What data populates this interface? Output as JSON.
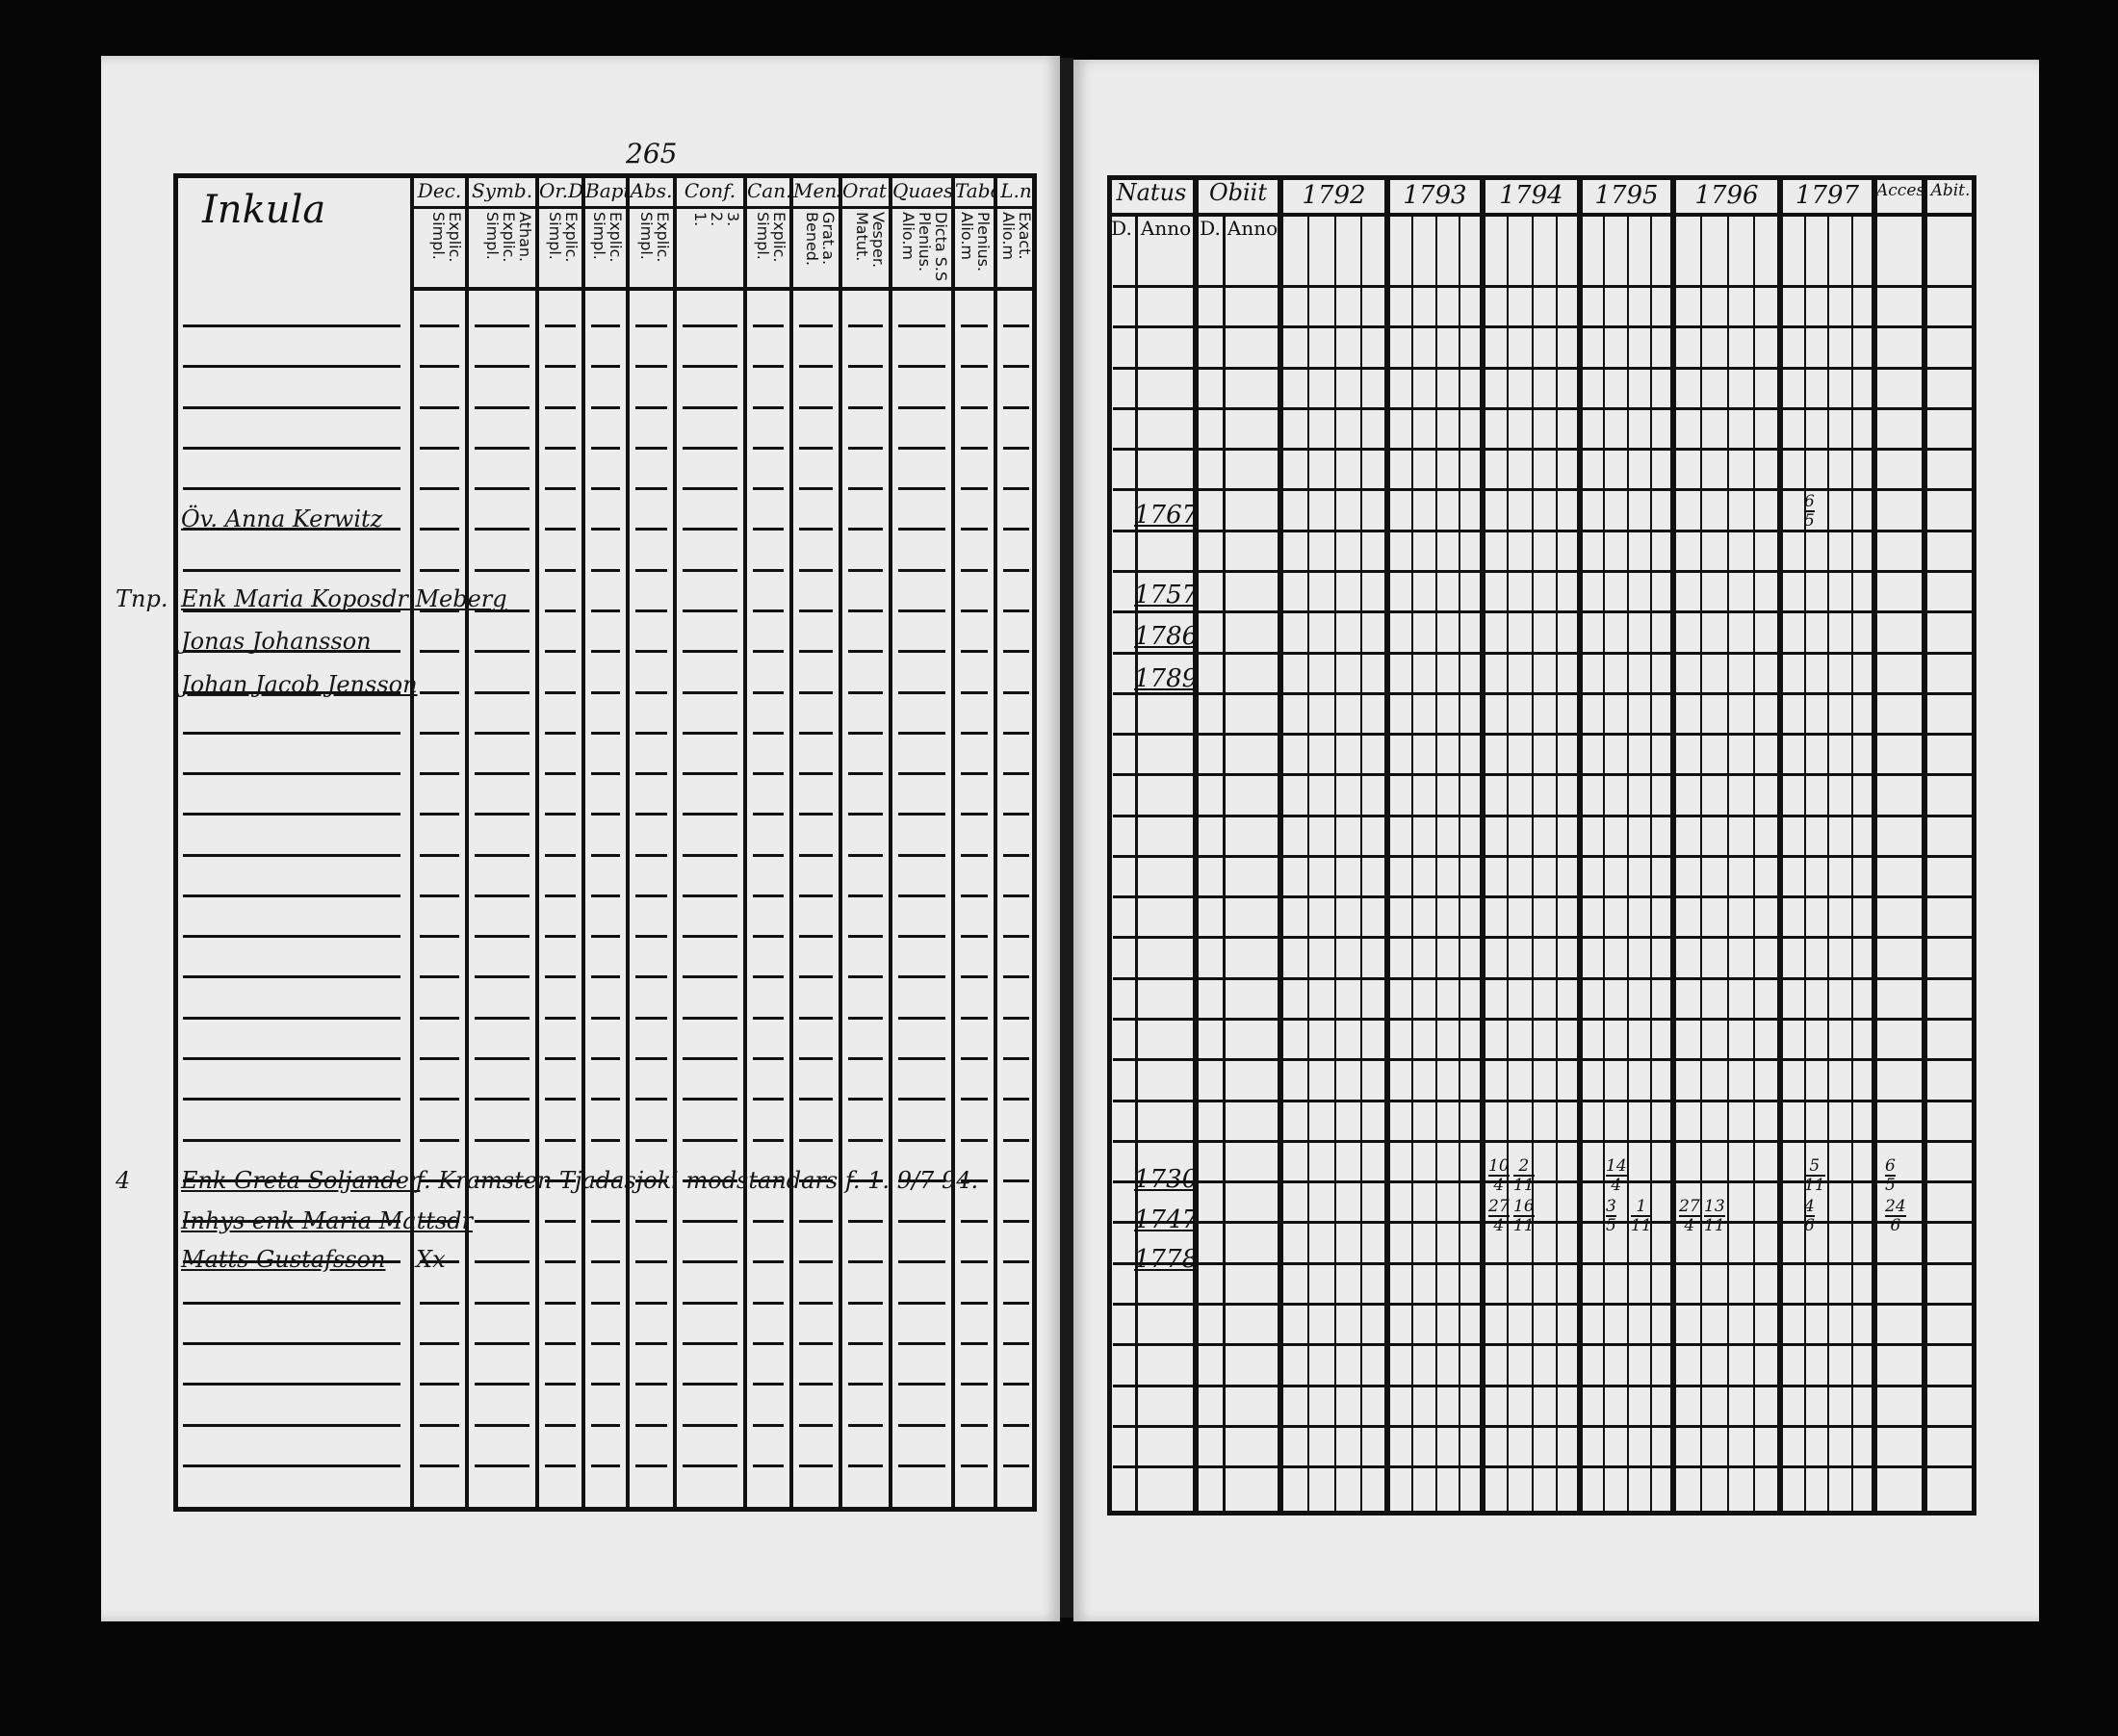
{
  "left_page": {
    "page_number": "265",
    "parish_title": "Inkula",
    "columns": [
      {
        "header": "Dec.",
        "sub": "Explic.\nSimpl."
      },
      {
        "header": "Symb.",
        "sub": "Athan.\nExplic.\nSimpl."
      },
      {
        "header": "Or.D",
        "sub": "Explic.\nSimpl."
      },
      {
        "header": "Bapt",
        "sub": "Explic.\nSimpl."
      },
      {
        "header": "Abs.",
        "sub": "Explic.\nSimpl."
      },
      {
        "header": "Conf.",
        "sub": "3.\n2.\n1."
      },
      {
        "header": "Can.D",
        "sub": "Explic.\nSimpl."
      },
      {
        "header": "Mens",
        "sub": "Grat.a.\nBened."
      },
      {
        "header": "Orat.",
        "sub": "Vesper.\nMatut."
      },
      {
        "header": "Quaest.",
        "sub": "Dicta S.S\nPlenius.\nAlio.m"
      },
      {
        "header": "Tabor",
        "sub": "Plenius.\nAlio.m"
      },
      {
        "header": "L.n",
        "sub": "Exact.\nAlio.m"
      }
    ],
    "entries": [
      {
        "margin": "",
        "name": "Öv. Anna Kerwitz",
        "note": ""
      },
      {
        "margin": "Tnp.",
        "name": "Enk Maria Koposdr Meberg",
        "note": ""
      },
      {
        "margin": "",
        "name": "Jonas Johansson",
        "note": ""
      },
      {
        "margin": "",
        "name": "Johan Jacob Jensson",
        "note": ""
      },
      {
        "margin": "4",
        "name": "Enk Greta Soljander",
        "note": "f. Kramsten  Tjadasjoki modstandars f. 1. 9/7 94."
      },
      {
        "margin": "",
        "name": "Inhys enk Maria Mattsdr",
        "note": ""
      },
      {
        "margin": "",
        "name": "Matts Gustafsson",
        "note": "Xx"
      }
    ]
  },
  "right_page": {
    "natus": {
      "header": "Natus",
      "d": "D.",
      "anno": "Anno"
    },
    "obiit": {
      "header": "Obiit",
      "d": "D.",
      "anno": "Anno"
    },
    "years": [
      "1792",
      "1793",
      "1794",
      "1795",
      "1796",
      "1797"
    ],
    "accessit": "Acces.",
    "abiit": "Abit.",
    "birth_years": [
      "1767",
      "1757",
      "1786",
      "1789",
      "1730",
      "1747",
      "1778"
    ],
    "marks": [
      {
        "row": "1767",
        "year": "1797",
        "top": "6",
        "bottom": "5"
      },
      {
        "row": "1730",
        "year": "1794",
        "top": "10",
        "bottom": "4"
      },
      {
        "row": "1730",
        "year": "1794",
        "top": "2",
        "bottom": "11"
      },
      {
        "row": "1747",
        "year": "1794",
        "top": "27",
        "bottom": "4"
      },
      {
        "row": "1747",
        "year": "1794",
        "top": "16",
        "bottom": "11"
      },
      {
        "row": "1730",
        "year": "1795",
        "top": "14",
        "bottom": "4"
      },
      {
        "row": "1747",
        "year": "1795",
        "top": "3",
        "bottom": "5"
      },
      {
        "row": "1747",
        "year": "1795",
        "top": "1",
        "bottom": "11"
      },
      {
        "row": "1747",
        "year": "1796",
        "top": "27",
        "bottom": "4"
      },
      {
        "row": "1747",
        "year": "1796",
        "top": "13",
        "bottom": "11"
      },
      {
        "row": "1730",
        "year": "1797",
        "top": "5",
        "bottom": "11"
      },
      {
        "row": "1747",
        "year": "1797",
        "top": "4",
        "bottom": "6"
      },
      {
        "row": "1730",
        "year": "Acces.",
        "top": "6",
        "bottom": "5"
      },
      {
        "row": "1747",
        "year": "Acces.",
        "top": "24",
        "bottom": "6"
      }
    ]
  }
}
